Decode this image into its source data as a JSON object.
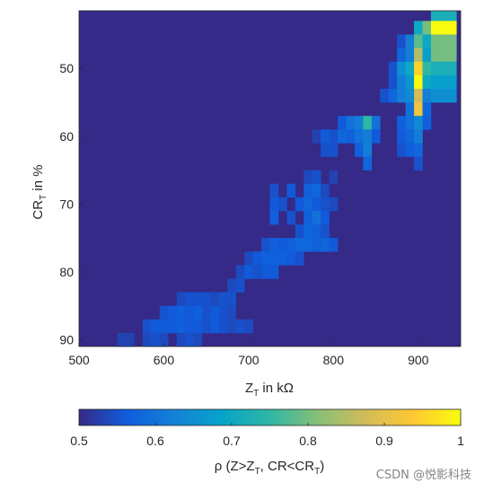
{
  "chart_data": {
    "type": "heatmap",
    "title": "",
    "xlabel": {
      "main": "Z",
      "sub": "T",
      "rest": " in kΩ"
    },
    "ylabel": {
      "main": "CR",
      "sub": "T",
      "rest": " in %"
    },
    "x_range": [
      500,
      950
    ],
    "y_range": [
      41.5,
      91
    ],
    "y_reversed": true,
    "x_ticks": [
      "500",
      "600",
      "700",
      "800",
      "900"
    ],
    "y_ticks": [
      "50",
      "60",
      "70",
      "80",
      "90"
    ],
    "cell_size": {
      "x": 10,
      "y": 2
    },
    "background_value": 0.5,
    "colormap": "parula",
    "colorbar": {
      "position": "bottom",
      "range": [
        0.5,
        1
      ],
      "ticks": [
        "0.5",
        "0.6",
        "0.7",
        "0.8",
        "0.9",
        "1"
      ],
      "label": {
        "a": "ρ (Z>Z",
        "sub1": "T",
        "b": ", CR<CR",
        "sub2": "T",
        "c": ")"
      }
    },
    "cells": [
      {
        "x": 920,
        "y": 42,
        "v": 0.72
      },
      {
        "x": 930,
        "y": 42,
        "v": 0.72
      },
      {
        "x": 940,
        "y": 42,
        "v": 0.72
      },
      {
        "x": 900,
        "y": 44,
        "v": 0.7
      },
      {
        "x": 910,
        "y": 44,
        "v": 0.8
      },
      {
        "x": 920,
        "y": 44,
        "v": 1.0
      },
      {
        "x": 930,
        "y": 44,
        "v": 1.0
      },
      {
        "x": 940,
        "y": 44,
        "v": 1.0
      },
      {
        "x": 880,
        "y": 46,
        "v": 0.55
      },
      {
        "x": 890,
        "y": 46,
        "v": 0.62
      },
      {
        "x": 900,
        "y": 46,
        "v": 0.78
      },
      {
        "x": 910,
        "y": 46,
        "v": 0.7
      },
      {
        "x": 920,
        "y": 46,
        "v": 0.8
      },
      {
        "x": 930,
        "y": 46,
        "v": 0.8
      },
      {
        "x": 940,
        "y": 46,
        "v": 0.8
      },
      {
        "x": 880,
        "y": 48,
        "v": 0.58
      },
      {
        "x": 890,
        "y": 48,
        "v": 0.62
      },
      {
        "x": 900,
        "y": 48,
        "v": 0.85
      },
      {
        "x": 910,
        "y": 48,
        "v": 0.68
      },
      {
        "x": 920,
        "y": 48,
        "v": 0.8
      },
      {
        "x": 930,
        "y": 48,
        "v": 0.8
      },
      {
        "x": 940,
        "y": 48,
        "v": 0.8
      },
      {
        "x": 870,
        "y": 50,
        "v": 0.55
      },
      {
        "x": 880,
        "y": 50,
        "v": 0.65
      },
      {
        "x": 890,
        "y": 50,
        "v": 0.7
      },
      {
        "x": 900,
        "y": 50,
        "v": 0.95
      },
      {
        "x": 910,
        "y": 50,
        "v": 0.75
      },
      {
        "x": 920,
        "y": 50,
        "v": 0.72
      },
      {
        "x": 930,
        "y": 50,
        "v": 0.72
      },
      {
        "x": 940,
        "y": 50,
        "v": 0.72
      },
      {
        "x": 870,
        "y": 52,
        "v": 0.55
      },
      {
        "x": 880,
        "y": 52,
        "v": 0.62
      },
      {
        "x": 890,
        "y": 52,
        "v": 0.66
      },
      {
        "x": 900,
        "y": 52,
        "v": 1.0
      },
      {
        "x": 910,
        "y": 52,
        "v": 0.7
      },
      {
        "x": 920,
        "y": 52,
        "v": 0.68
      },
      {
        "x": 930,
        "y": 52,
        "v": 0.68
      },
      {
        "x": 940,
        "y": 52,
        "v": 0.68
      },
      {
        "x": 860,
        "y": 54,
        "v": 0.55
      },
      {
        "x": 870,
        "y": 54,
        "v": 0.58
      },
      {
        "x": 880,
        "y": 54,
        "v": 0.62
      },
      {
        "x": 890,
        "y": 54,
        "v": 0.64
      },
      {
        "x": 900,
        "y": 54,
        "v": 0.88
      },
      {
        "x": 910,
        "y": 54,
        "v": 0.62
      },
      {
        "x": 920,
        "y": 54,
        "v": 0.65
      },
      {
        "x": 930,
        "y": 54,
        "v": 0.65
      },
      {
        "x": 940,
        "y": 54,
        "v": 0.65
      },
      {
        "x": 890,
        "y": 56,
        "v": 0.6
      },
      {
        "x": 900,
        "y": 56,
        "v": 0.92
      },
      {
        "x": 910,
        "y": 56,
        "v": 0.58
      },
      {
        "x": 810,
        "y": 58,
        "v": 0.56
      },
      {
        "x": 820,
        "y": 58,
        "v": 0.6
      },
      {
        "x": 830,
        "y": 58,
        "v": 0.62
      },
      {
        "x": 840,
        "y": 58,
        "v": 0.75
      },
      {
        "x": 850,
        "y": 58,
        "v": 0.6
      },
      {
        "x": 880,
        "y": 58,
        "v": 0.57
      },
      {
        "x": 890,
        "y": 58,
        "v": 0.6
      },
      {
        "x": 900,
        "y": 58,
        "v": 0.64
      },
      {
        "x": 910,
        "y": 58,
        "v": 0.57
      },
      {
        "x": 780,
        "y": 60,
        "v": 0.53
      },
      {
        "x": 790,
        "y": 60,
        "v": 0.56
      },
      {
        "x": 800,
        "y": 60,
        "v": 0.55
      },
      {
        "x": 810,
        "y": 60,
        "v": 0.58
      },
      {
        "x": 820,
        "y": 60,
        "v": 0.57
      },
      {
        "x": 830,
        "y": 60,
        "v": 0.6
      },
      {
        "x": 840,
        "y": 60,
        "v": 0.62
      },
      {
        "x": 850,
        "y": 60,
        "v": 0.56
      },
      {
        "x": 880,
        "y": 60,
        "v": 0.56
      },
      {
        "x": 890,
        "y": 60,
        "v": 0.58
      },
      {
        "x": 900,
        "y": 60,
        "v": 0.62
      },
      {
        "x": 790,
        "y": 62,
        "v": 0.55
      },
      {
        "x": 800,
        "y": 62,
        "v": 0.55
      },
      {
        "x": 830,
        "y": 62,
        "v": 0.57
      },
      {
        "x": 840,
        "y": 62,
        "v": 0.62
      },
      {
        "x": 880,
        "y": 62,
        "v": 0.55
      },
      {
        "x": 890,
        "y": 62,
        "v": 0.57
      },
      {
        "x": 900,
        "y": 62,
        "v": 0.58
      },
      {
        "x": 840,
        "y": 64,
        "v": 0.58
      },
      {
        "x": 900,
        "y": 64,
        "v": 0.55
      },
      {
        "x": 770,
        "y": 66,
        "v": 0.54
      },
      {
        "x": 780,
        "y": 66,
        "v": 0.55
      },
      {
        "x": 800,
        "y": 66,
        "v": 0.53
      },
      {
        "x": 730,
        "y": 68,
        "v": 0.55
      },
      {
        "x": 750,
        "y": 68,
        "v": 0.56
      },
      {
        "x": 770,
        "y": 68,
        "v": 0.57
      },
      {
        "x": 780,
        "y": 68,
        "v": 0.58
      },
      {
        "x": 790,
        "y": 68,
        "v": 0.54
      },
      {
        "x": 730,
        "y": 70,
        "v": 0.56
      },
      {
        "x": 740,
        "y": 70,
        "v": 0.55
      },
      {
        "x": 760,
        "y": 70,
        "v": 0.56
      },
      {
        "x": 770,
        "y": 70,
        "v": 0.58
      },
      {
        "x": 780,
        "y": 70,
        "v": 0.56
      },
      {
        "x": 790,
        "y": 70,
        "v": 0.55
      },
      {
        "x": 800,
        "y": 70,
        "v": 0.54
      },
      {
        "x": 730,
        "y": 72,
        "v": 0.57
      },
      {
        "x": 750,
        "y": 72,
        "v": 0.55
      },
      {
        "x": 770,
        "y": 72,
        "v": 0.57
      },
      {
        "x": 780,
        "y": 72,
        "v": 0.6
      },
      {
        "x": 790,
        "y": 72,
        "v": 0.56
      },
      {
        "x": 760,
        "y": 74,
        "v": 0.55
      },
      {
        "x": 770,
        "y": 74,
        "v": 0.58
      },
      {
        "x": 780,
        "y": 74,
        "v": 0.57
      },
      {
        "x": 790,
        "y": 74,
        "v": 0.55
      },
      {
        "x": 720,
        "y": 76,
        "v": 0.55
      },
      {
        "x": 730,
        "y": 76,
        "v": 0.57
      },
      {
        "x": 740,
        "y": 76,
        "v": 0.56
      },
      {
        "x": 750,
        "y": 76,
        "v": 0.57
      },
      {
        "x": 760,
        "y": 76,
        "v": 0.58
      },
      {
        "x": 770,
        "y": 76,
        "v": 0.58
      },
      {
        "x": 780,
        "y": 76,
        "v": 0.57
      },
      {
        "x": 790,
        "y": 76,
        "v": 0.58
      },
      {
        "x": 800,
        "y": 76,
        "v": 0.56
      },
      {
        "x": 700,
        "y": 78,
        "v": 0.54
      },
      {
        "x": 710,
        "y": 78,
        "v": 0.56
      },
      {
        "x": 720,
        "y": 78,
        "v": 0.57
      },
      {
        "x": 730,
        "y": 78,
        "v": 0.57
      },
      {
        "x": 740,
        "y": 78,
        "v": 0.57
      },
      {
        "x": 750,
        "y": 78,
        "v": 0.56
      },
      {
        "x": 760,
        "y": 78,
        "v": 0.55
      },
      {
        "x": 690,
        "y": 80,
        "v": 0.54
      },
      {
        "x": 700,
        "y": 80,
        "v": 0.56
      },
      {
        "x": 710,
        "y": 80,
        "v": 0.55
      },
      {
        "x": 720,
        "y": 80,
        "v": 0.56
      },
      {
        "x": 730,
        "y": 80,
        "v": 0.56
      },
      {
        "x": 680,
        "y": 82,
        "v": 0.54
      },
      {
        "x": 690,
        "y": 82,
        "v": 0.55
      },
      {
        "x": 620,
        "y": 84,
        "v": 0.54
      },
      {
        "x": 630,
        "y": 84,
        "v": 0.55
      },
      {
        "x": 640,
        "y": 84,
        "v": 0.55
      },
      {
        "x": 650,
        "y": 84,
        "v": 0.55
      },
      {
        "x": 660,
        "y": 84,
        "v": 0.54
      },
      {
        "x": 670,
        "y": 84,
        "v": 0.55
      },
      {
        "x": 680,
        "y": 84,
        "v": 0.55
      },
      {
        "x": 600,
        "y": 86,
        "v": 0.55
      },
      {
        "x": 610,
        "y": 86,
        "v": 0.56
      },
      {
        "x": 620,
        "y": 86,
        "v": 0.57
      },
      {
        "x": 630,
        "y": 86,
        "v": 0.56
      },
      {
        "x": 640,
        "y": 86,
        "v": 0.57
      },
      {
        "x": 650,
        "y": 86,
        "v": 0.55
      },
      {
        "x": 660,
        "y": 86,
        "v": 0.56
      },
      {
        "x": 670,
        "y": 86,
        "v": 0.55
      },
      {
        "x": 680,
        "y": 86,
        "v": 0.54
      },
      {
        "x": 580,
        "y": 88,
        "v": 0.55
      },
      {
        "x": 590,
        "y": 88,
        "v": 0.56
      },
      {
        "x": 600,
        "y": 88,
        "v": 0.56
      },
      {
        "x": 610,
        "y": 88,
        "v": 0.56
      },
      {
        "x": 620,
        "y": 88,
        "v": 0.57
      },
      {
        "x": 630,
        "y": 88,
        "v": 0.56
      },
      {
        "x": 640,
        "y": 88,
        "v": 0.56
      },
      {
        "x": 650,
        "y": 88,
        "v": 0.55
      },
      {
        "x": 660,
        "y": 88,
        "v": 0.56
      },
      {
        "x": 670,
        "y": 88,
        "v": 0.55
      },
      {
        "x": 680,
        "y": 88,
        "v": 0.54
      },
      {
        "x": 690,
        "y": 88,
        "v": 0.55
      },
      {
        "x": 700,
        "y": 88,
        "v": 0.54
      },
      {
        "x": 550,
        "y": 90,
        "v": 0.53
      },
      {
        "x": 560,
        "y": 90,
        "v": 0.53
      },
      {
        "x": 580,
        "y": 90,
        "v": 0.54
      },
      {
        "x": 590,
        "y": 90,
        "v": 0.55
      },
      {
        "x": 600,
        "y": 90,
        "v": 0.54
      },
      {
        "x": 620,
        "y": 90,
        "v": 0.54
      },
      {
        "x": 630,
        "y": 90,
        "v": 0.55
      },
      {
        "x": 640,
        "y": 90,
        "v": 0.54
      }
    ]
  },
  "watermark": "CSDN @悦影科技"
}
